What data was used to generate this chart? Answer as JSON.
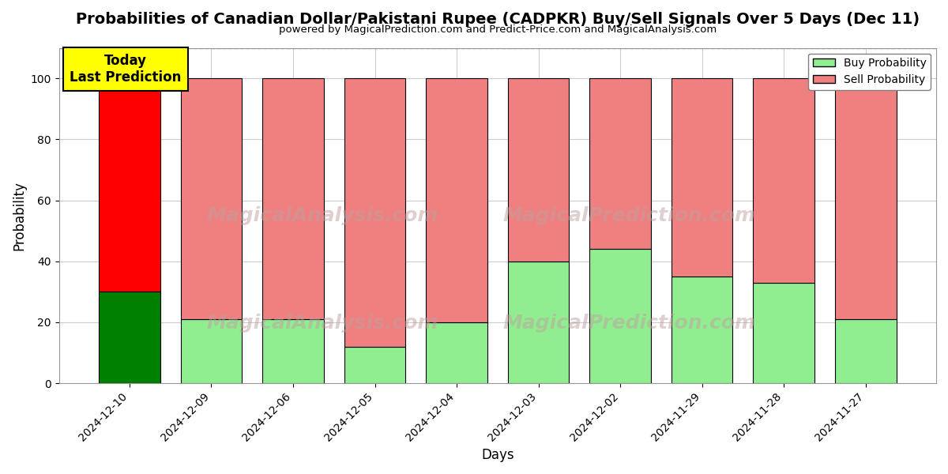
{
  "title": "Probabilities of Canadian Dollar/Pakistani Rupee (CADPKR) Buy/Sell Signals Over 5 Days (Dec 11)",
  "subtitle": "powered by MagicalPrediction.com and Predict-Price.com and MagicalAnalysis.com",
  "xlabel": "Days",
  "ylabel": "Probability",
  "days": [
    "2024-12-10",
    "2024-12-09",
    "2024-12-06",
    "2024-12-05",
    "2024-12-04",
    "2024-12-03",
    "2024-12-02",
    "2024-11-29",
    "2024-11-28",
    "2024-11-27"
  ],
  "buy_values": [
    30,
    21,
    21,
    12,
    20,
    40,
    44,
    35,
    33,
    21
  ],
  "sell_values": [
    70,
    79,
    79,
    88,
    80,
    60,
    56,
    65,
    67,
    79
  ],
  "today_bar_buy_color": "#008000",
  "today_bar_sell_color": "#ff0000",
  "other_bar_buy_color": "#90EE90",
  "other_bar_sell_color": "#F08080",
  "bar_edge_color": "#000000",
  "today_annotation_text": "Today\nLast Prediction",
  "today_annotation_bg": "#ffff00",
  "legend_buy_color": "#90EE90",
  "legend_sell_color": "#F08080",
  "ylim": [
    0,
    110
  ],
  "dashed_line_y": 110,
  "watermark_left": "MagicalAnalysis.com",
  "watermark_right": "MagicalPrediction.com",
  "background_color": "#ffffff",
  "grid_color": "#cccccc"
}
